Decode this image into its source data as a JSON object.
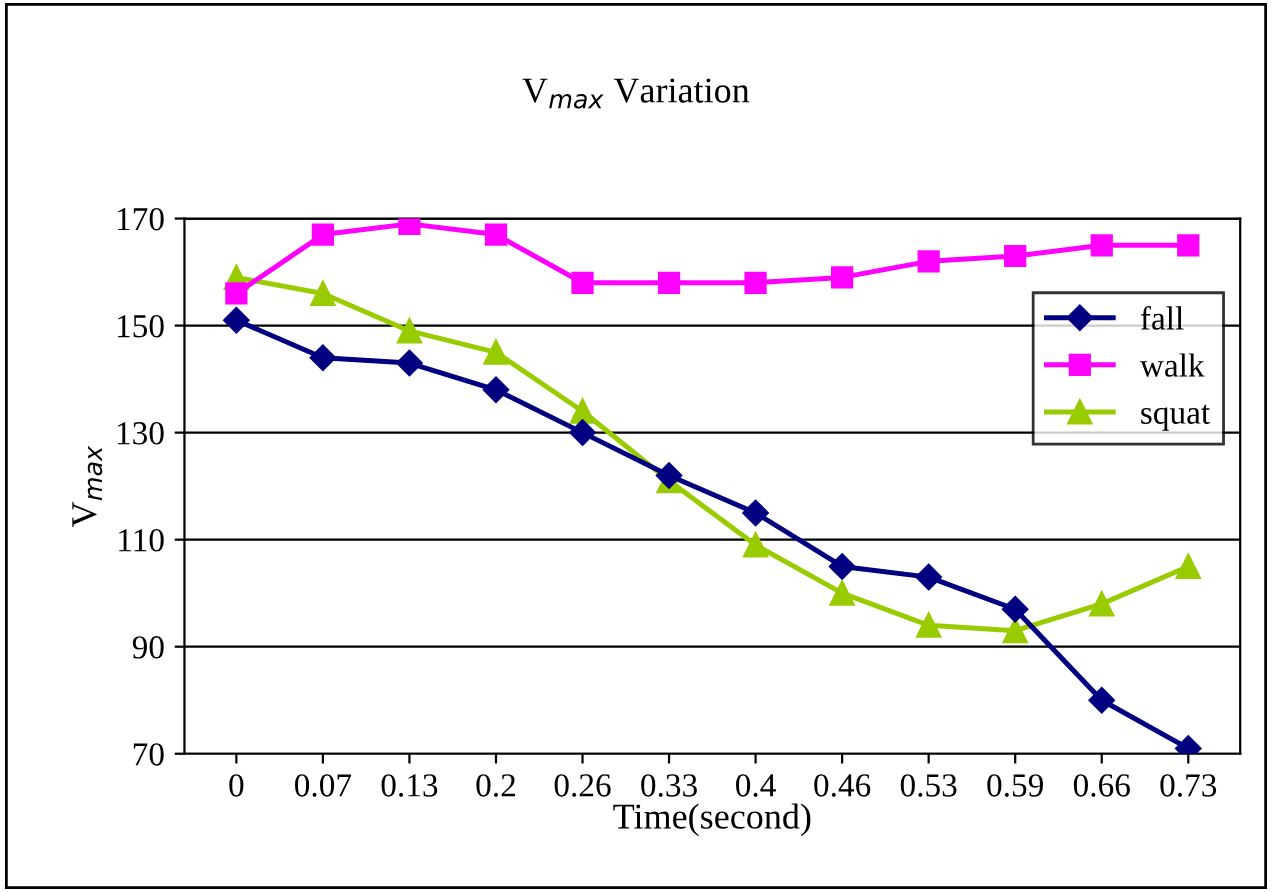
{
  "chart_data": {
    "type": "line",
    "title": "V$_{max}$ Variation",
    "xlabel": "Time(second)",
    "ylabel": "V$_{max}$",
    "categories": [
      "0",
      "0.07",
      "0.13",
      "0.2",
      "0.26",
      "0.33",
      "0.4",
      "0.46",
      "0.53",
      "0.59",
      "0.66",
      "0.73"
    ],
    "series": [
      {
        "name": "fall",
        "color": "#000080",
        "marker": "diamond",
        "values": [
          151,
          144,
          143,
          138,
          130,
          122,
          115,
          105,
          103,
          97,
          80,
          71
        ]
      },
      {
        "name": "walk",
        "color": "#ff00ff",
        "marker": "square",
        "values": [
          156,
          167,
          169,
          167,
          158,
          158,
          158,
          159,
          162,
          163,
          165,
          165
        ]
      },
      {
        "name": "squat",
        "color": "#99cc00",
        "marker": "triangle",
        "values": [
          159,
          156,
          149,
          145,
          134,
          121,
          109,
          100,
          94,
          93,
          98,
          105
        ]
      }
    ],
    "ylim": [
      70,
      170
    ],
    "yticks": [
      70,
      90,
      110,
      130,
      150,
      170
    ],
    "grid": "y",
    "legend": "right",
    "line_style": "solid"
  }
}
